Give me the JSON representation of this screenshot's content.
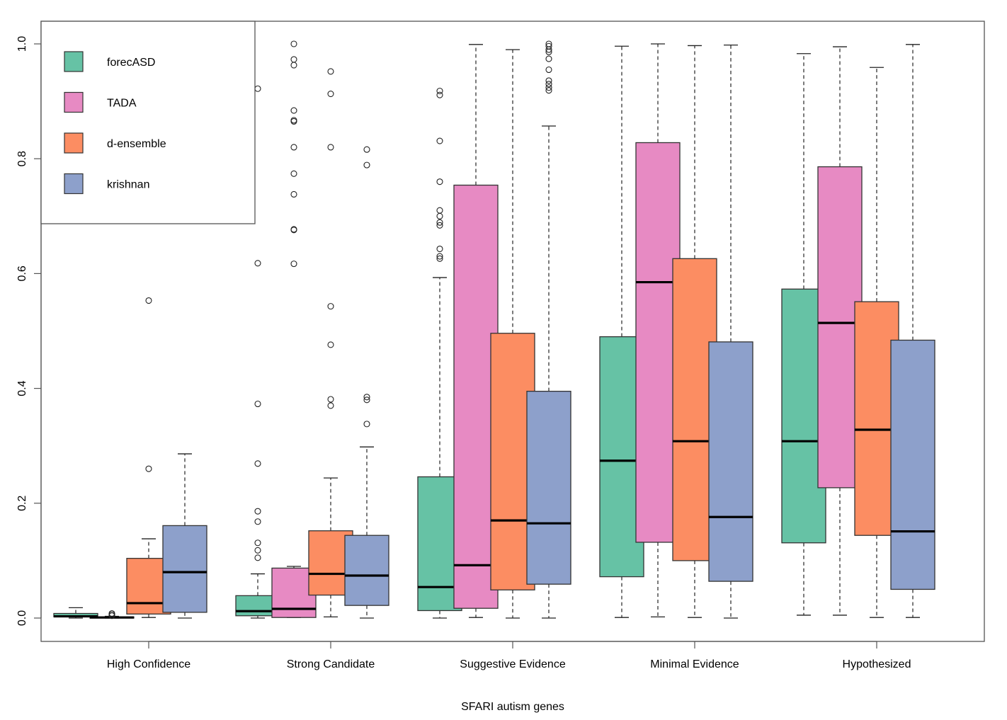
{
  "chart_data": {
    "type": "boxplot",
    "title": "",
    "xlabel": "SFARI autism genes",
    "ylabel": "",
    "ylim": [
      -0.04,
      1.04
    ],
    "yticks": [
      0.0,
      0.2,
      0.4,
      0.6,
      0.8,
      1.0
    ],
    "ytick_labels": [
      "0.0",
      "0.2",
      "0.4",
      "0.6",
      "0.8",
      "1.0"
    ],
    "grid": false,
    "legend_position": "top-left",
    "categories": [
      "High Confidence",
      "Strong Candidate",
      "Suggestive Evidence",
      "Minimal Evidence",
      "Hypothesized"
    ],
    "series": [
      {
        "name": "forecASD",
        "color": "#66C2A5",
        "boxes": [
          {
            "lower_whisker": 0.0,
            "q1": 0.002,
            "median": 0.003,
            "q3": 0.008,
            "upper_whisker": 0.018,
            "outliers": []
          },
          {
            "lower_whisker": 0.0,
            "q1": 0.004,
            "median": 0.012,
            "q3": 0.039,
            "upper_whisker": 0.077,
            "outliers": [
              0.105,
              0.118,
              0.131,
              0.168,
              0.186,
              0.269,
              0.373,
              0.618,
              0.922
            ]
          },
          {
            "lower_whisker": 0.0,
            "q1": 0.013,
            "median": 0.054,
            "q3": 0.246,
            "upper_whisker": 0.593,
            "outliers": [
              0.626,
              0.63,
              0.643,
              0.684,
              0.689,
              0.7,
              0.71,
              0.76,
              0.831,
              0.911,
              0.918
            ]
          },
          {
            "lower_whisker": 0.001,
            "q1": 0.072,
            "median": 0.274,
            "q3": 0.49,
            "upper_whisker": 0.996,
            "outliers": []
          },
          {
            "lower_whisker": 0.005,
            "q1": 0.131,
            "median": 0.308,
            "q3": 0.573,
            "upper_whisker": 0.983,
            "outliers": []
          }
        ]
      },
      {
        "name": "TADA",
        "color": "#E78AC3",
        "boxes": [
          {
            "lower_whisker": 0.0,
            "q1": 0.0,
            "median": 0.001,
            "q3": 0.002,
            "upper_whisker": 0.003,
            "outliers": [
              0.004,
              0.006,
              0.008
            ]
          },
          {
            "lower_whisker": 0.001,
            "q1": 0.001,
            "median": 0.016,
            "q3": 0.087,
            "upper_whisker": 0.09,
            "outliers": [
              0.617,
              0.676,
              0.677,
              0.738,
              0.774,
              0.82,
              0.865,
              0.867,
              0.884,
              0.963,
              0.973,
              1.0
            ]
          },
          {
            "lower_whisker": 0.001,
            "q1": 0.017,
            "median": 0.092,
            "q3": 0.754,
            "upper_whisker": 0.999,
            "outliers": []
          },
          {
            "lower_whisker": 0.002,
            "q1": 0.132,
            "median": 0.585,
            "q3": 0.828,
            "upper_whisker": 1.0,
            "outliers": []
          },
          {
            "lower_whisker": 0.005,
            "q1": 0.227,
            "median": 0.514,
            "q3": 0.786,
            "upper_whisker": 0.995,
            "outliers": []
          }
        ]
      },
      {
        "name": "d-ensemble",
        "color": "#FC8D62",
        "boxes": [
          {
            "lower_whisker": 0.001,
            "q1": 0.007,
            "median": 0.026,
            "q3": 0.104,
            "upper_whisker": 0.138,
            "outliers": [
              0.26,
              0.553
            ]
          },
          {
            "lower_whisker": 0.002,
            "q1": 0.04,
            "median": 0.077,
            "q3": 0.152,
            "upper_whisker": 0.244,
            "outliers": [
              0.37,
              0.381,
              0.476,
              0.543,
              0.82,
              0.913,
              0.952
            ]
          },
          {
            "lower_whisker": 0.0,
            "q1": 0.049,
            "median": 0.17,
            "q3": 0.496,
            "upper_whisker": 0.99,
            "outliers": []
          },
          {
            "lower_whisker": 0.001,
            "q1": 0.1,
            "median": 0.308,
            "q3": 0.626,
            "upper_whisker": 0.997,
            "outliers": []
          },
          {
            "lower_whisker": 0.001,
            "q1": 0.144,
            "median": 0.328,
            "q3": 0.551,
            "upper_whisker": 0.959,
            "outliers": []
          }
        ]
      },
      {
        "name": "krishnan",
        "color": "#8DA0CB",
        "boxes": [
          {
            "lower_whisker": 0.0,
            "q1": 0.01,
            "median": 0.08,
            "q3": 0.161,
            "upper_whisker": 0.286,
            "outliers": []
          },
          {
            "lower_whisker": 0.0,
            "q1": 0.022,
            "median": 0.074,
            "q3": 0.144,
            "upper_whisker": 0.298,
            "outliers": [
              0.338,
              0.38,
              0.385,
              0.789,
              0.816
            ]
          },
          {
            "lower_whisker": 0.0,
            "q1": 0.059,
            "median": 0.165,
            "q3": 0.395,
            "upper_whisker": 0.857,
            "outliers": [
              0.919,
              0.924,
              0.93,
              0.936,
              0.955,
              0.974,
              0.986,
              0.99,
              0.996,
              1.0
            ]
          },
          {
            "lower_whisker": 0.0,
            "q1": 0.064,
            "median": 0.176,
            "q3": 0.481,
            "upper_whisker": 0.998,
            "outliers": []
          },
          {
            "lower_whisker": 0.001,
            "q1": 0.05,
            "median": 0.151,
            "q3": 0.484,
            "upper_whisker": 0.999,
            "outliers": []
          }
        ]
      }
    ]
  }
}
